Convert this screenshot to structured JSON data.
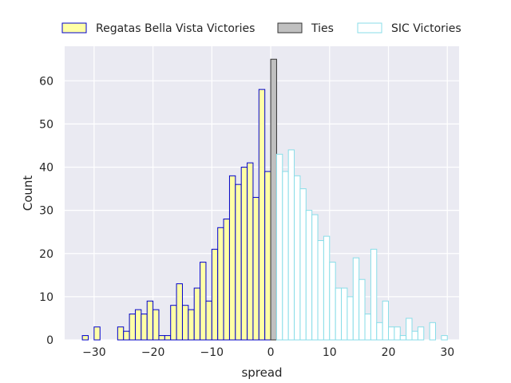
{
  "chart_data": {
    "type": "bar",
    "subtype": "histogram",
    "xlabel": "spread",
    "ylabel": "Count",
    "xlim": [
      -35,
      32
    ],
    "ylim": [
      0,
      68
    ],
    "x_ticks": [
      -30,
      -20,
      -10,
      0,
      10,
      20,
      30
    ],
    "y_ticks": [
      0,
      10,
      20,
      30,
      40,
      50,
      60
    ],
    "grid": true,
    "legend_position": "top",
    "bin_width": 1,
    "series": [
      {
        "name": "Regatas Bella Vista Victories",
        "fill": "#ffffa6",
        "edge": "#0000cc",
        "bins": [
          {
            "x": -32,
            "count": 1
          },
          {
            "x": -30,
            "count": 3
          },
          {
            "x": -26,
            "count": 3
          },
          {
            "x": -25,
            "count": 2
          },
          {
            "x": -24,
            "count": 6
          },
          {
            "x": -23,
            "count": 7
          },
          {
            "x": -22,
            "count": 6
          },
          {
            "x": -21,
            "count": 9
          },
          {
            "x": -20,
            "count": 7
          },
          {
            "x": -19,
            "count": 1
          },
          {
            "x": -18,
            "count": 1
          },
          {
            "x": -17,
            "count": 8
          },
          {
            "x": -16,
            "count": 13
          },
          {
            "x": -15,
            "count": 8
          },
          {
            "x": -14,
            "count": 7
          },
          {
            "x": -13,
            "count": 12
          },
          {
            "x": -12,
            "count": 18
          },
          {
            "x": -11,
            "count": 9
          },
          {
            "x": -10,
            "count": 21
          },
          {
            "x": -9,
            "count": 26
          },
          {
            "x": -8,
            "count": 28
          },
          {
            "x": -7,
            "count": 38
          },
          {
            "x": -6,
            "count": 36
          },
          {
            "x": -5,
            "count": 40
          },
          {
            "x": -4,
            "count": 41
          },
          {
            "x": -3,
            "count": 33
          },
          {
            "x": -2,
            "count": 58
          },
          {
            "x": -1,
            "count": 39
          }
        ]
      },
      {
        "name": "Ties",
        "fill": "#c0c0c0",
        "edge": "#333333",
        "bins": [
          {
            "x": 0,
            "count": 65
          }
        ]
      },
      {
        "name": "SIC Victories",
        "fill": "#ffffff",
        "edge": "#88dde8",
        "bins": [
          {
            "x": 1,
            "count": 43
          },
          {
            "x": 2,
            "count": 39
          },
          {
            "x": 3,
            "count": 44
          },
          {
            "x": 4,
            "count": 38
          },
          {
            "x": 5,
            "count": 35
          },
          {
            "x": 6,
            "count": 30
          },
          {
            "x": 7,
            "count": 29
          },
          {
            "x": 8,
            "count": 23
          },
          {
            "x": 9,
            "count": 24
          },
          {
            "x": 10,
            "count": 18
          },
          {
            "x": 11,
            "count": 12
          },
          {
            "x": 12,
            "count": 12
          },
          {
            "x": 13,
            "count": 10
          },
          {
            "x": 14,
            "count": 19
          },
          {
            "x": 15,
            "count": 14
          },
          {
            "x": 16,
            "count": 6
          },
          {
            "x": 17,
            "count": 21
          },
          {
            "x": 18,
            "count": 4
          },
          {
            "x": 19,
            "count": 9
          },
          {
            "x": 20,
            "count": 3
          },
          {
            "x": 21,
            "count": 3
          },
          {
            "x": 22,
            "count": 1
          },
          {
            "x": 23,
            "count": 5
          },
          {
            "x": 24,
            "count": 2
          },
          {
            "x": 25,
            "count": 3
          },
          {
            "x": 26,
            "count": 0
          },
          {
            "x": 27,
            "count": 4
          },
          {
            "x": 28,
            "count": 0
          },
          {
            "x": 29,
            "count": 1
          }
        ]
      }
    ]
  },
  "colors": {
    "plot_background": "#eaeaf2",
    "grid": "#ffffff",
    "text": "#262626"
  }
}
